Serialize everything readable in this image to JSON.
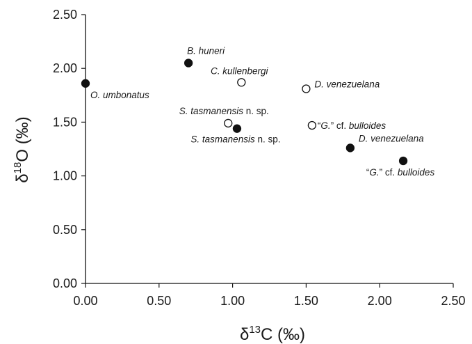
{
  "chart_data": {
    "type": "scatter",
    "title": "",
    "xlabel": {
      "base": "δ",
      "sup": "13",
      "rest": "C (‰)"
    },
    "ylabel": {
      "base": "δ",
      "sup": "18",
      "rest": "O (‰)"
    },
    "xlim": [
      0,
      2.5
    ],
    "ylim": [
      0,
      2.5
    ],
    "xticks": [
      "0.00",
      "0.50",
      "1.00",
      "1.50",
      "2.00",
      "2.50"
    ],
    "yticks": [
      "0.00",
      "0.50",
      "1.00",
      "1.50",
      "2.00",
      "2.50"
    ],
    "grid": false,
    "legend": "none",
    "marker_colors": {
      "filled": "#111111",
      "open": "#ffffff",
      "edge": "#111111"
    },
    "series": [
      {
        "marker": "filled-circle",
        "points": [
          {
            "x": 0.0,
            "y": 1.86,
            "label": [
              {
                "t": "O. umbonatus",
                "i": true
              }
            ]
          },
          {
            "x": 0.7,
            "y": 2.05,
            "label": [
              {
                "t": "B. huneri",
                "i": true
              }
            ]
          },
          {
            "x": 1.03,
            "y": 1.44,
            "label": [
              {
                "t": "S. tasmanensis",
                "i": true
              },
              {
                "t": " n. sp.",
                "i": false
              }
            ]
          },
          {
            "x": 1.8,
            "y": 1.26,
            "label": [
              {
                "t": "D. venezuelana",
                "i": true
              }
            ]
          },
          {
            "x": 2.16,
            "y": 1.14,
            "label": [
              {
                "t": "“",
                "i": false
              },
              {
                "t": "G.",
                "i": true
              },
              {
                "t": "” cf. ",
                "i": false
              },
              {
                "t": "bulloides",
                "i": true
              }
            ]
          }
        ]
      },
      {
        "marker": "open-circle",
        "points": [
          {
            "x": 1.06,
            "y": 1.87,
            "label": [
              {
                "t": "C. kullenbergi",
                "i": true
              }
            ]
          },
          {
            "x": 1.5,
            "y": 1.81,
            "label": [
              {
                "t": "D. venezuelana",
                "i": true
              }
            ]
          },
          {
            "x": 0.97,
            "y": 1.49,
            "label": [
              {
                "t": "S. tasmanensis",
                "i": true
              },
              {
                "t": " n. sp.",
                "i": false
              }
            ]
          },
          {
            "x": 1.54,
            "y": 1.47,
            "label": [
              {
                "t": "“",
                "i": false
              },
              {
                "t": "G.",
                "i": true
              },
              {
                "t": "” cf. ",
                "i": false
              },
              {
                "t": "bulloides",
                "i": true
              }
            ]
          }
        ]
      }
    ]
  }
}
